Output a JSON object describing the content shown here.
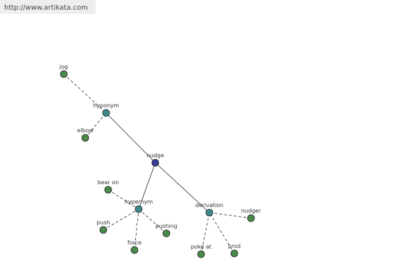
{
  "header": {
    "url": "http://www.artikata.com"
  },
  "nodes": [
    {
      "label": "jog"
    },
    {
      "label": "hyponym"
    },
    {
      "label": "elbow"
    },
    {
      "label": "nudge"
    },
    {
      "label": "bear on"
    },
    {
      "label": "hypernym"
    },
    {
      "label": "push"
    },
    {
      "label": "pushing"
    },
    {
      "label": "force"
    },
    {
      "label": "derivation"
    },
    {
      "label": "nudger"
    },
    {
      "label": "poke at"
    },
    {
      "label": "prod"
    }
  ]
}
